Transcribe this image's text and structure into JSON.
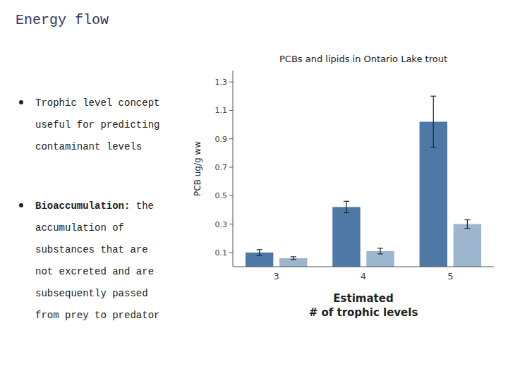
{
  "slide_title": "Energy flow",
  "bullets": [
    {
      "lines": [
        "Trophic level concept",
        "useful for predicting",
        "contaminant levels"
      ]
    },
    {
      "bold": "Bioaccumulation:",
      "lines": [
        "the",
        "accumulation of",
        "substances that are",
        "not excreted and are",
        "subsequently passed",
        "from prey to predator"
      ]
    }
  ],
  "chart_data": {
    "type": "bar",
    "title": "PCBs and lipids in Ontario Lake trout",
    "ylabel": "PCB ug/g ww",
    "xlabel": [
      "Estimated",
      "# of trophic levels"
    ],
    "categories": [
      "3",
      "4",
      "5"
    ],
    "series": [
      {
        "values": [
          0.1,
          0.42,
          1.02
        ],
        "errors": [
          0.02,
          0.04,
          0.18
        ]
      },
      {
        "values": [
          0.06,
          0.11,
          0.3
        ],
        "errors": [
          0.01,
          0.02,
          0.03
        ]
      }
    ],
    "color": "#4e79a7",
    "ylim": [
      0,
      1.38
    ],
    "yticks": [
      0.1,
      0.3,
      0.5,
      0.7,
      0.9,
      1.1,
      1.3
    ],
    "grid": false
  }
}
